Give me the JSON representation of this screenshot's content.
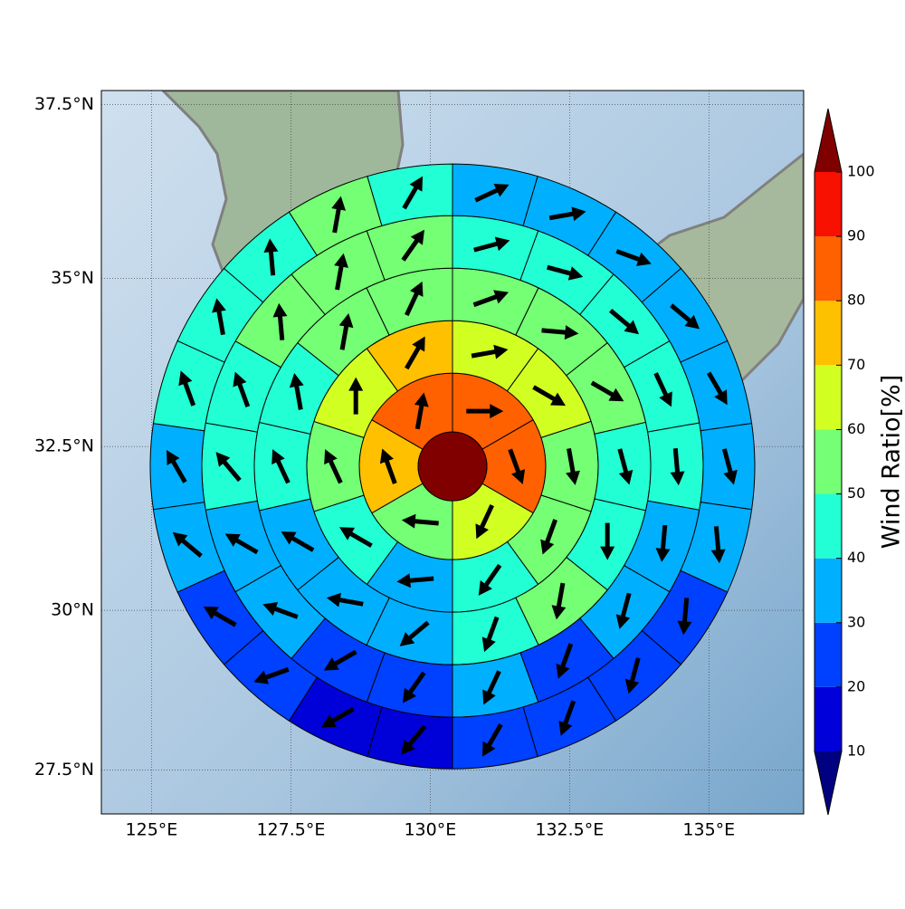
{
  "chart_data": {
    "type": "polar-wind-map",
    "projection": "mercator",
    "xlim": [
      124.1,
      136.7
    ],
    "ylim": [
      26.8,
      37.7
    ],
    "xticks": [
      {
        "value": 125,
        "label": "125°E"
      },
      {
        "value": 127.5,
        "label": "127.5°E"
      },
      {
        "value": 130,
        "label": "130°E"
      },
      {
        "value": 132.5,
        "label": "132.5°E"
      },
      {
        "value": 135,
        "label": "135°E"
      }
    ],
    "yticks": [
      {
        "value": 27.5,
        "label": "27.5°N"
      },
      {
        "value": 30,
        "label": "30°N"
      },
      {
        "value": 32.5,
        "label": "32.5°N"
      },
      {
        "value": 35,
        "label": "35°N"
      },
      {
        "value": 37.5,
        "label": "37.5°N"
      }
    ],
    "grid": true,
    "center_lon": 130.4,
    "center_lat": 32.2,
    "center_value": 105,
    "rings": [
      {
        "values": [
          85,
          82,
          65,
          55,
          75,
          85
        ],
        "directions": [
          90,
          160,
          205,
          275,
          340,
          10
        ]
      },
      {
        "values": [
          65,
          65,
          55,
          55,
          45,
          35,
          45,
          55,
          65,
          75
        ],
        "directions": [
          80,
          120,
          170,
          200,
          215,
          265,
          300,
          335,
          0,
          30
        ]
      },
      {
        "values": [
          55,
          55,
          55,
          45,
          45,
          55,
          45,
          35,
          35,
          35,
          45,
          45,
          55,
          55
        ],
        "directions": [
          70,
          95,
          120,
          165,
          180,
          190,
          200,
          230,
          280,
          300,
          335,
          350,
          10,
          25
        ]
      },
      {
        "values": [
          45,
          45,
          45,
          45,
          45,
          35,
          35,
          25,
          35,
          25,
          25,
          35,
          35,
          45,
          45,
          55,
          55,
          55
        ],
        "directions": [
          75,
          105,
          130,
          155,
          175,
          185,
          195,
          200,
          205,
          215,
          240,
          290,
          300,
          320,
          340,
          355,
          10,
          35
        ]
      },
      {
        "values": [
          35,
          35,
          35,
          35,
          35,
          35,
          35,
          25,
          25,
          25,
          25,
          15,
          15,
          25,
          25,
          35,
          35,
          45,
          45,
          45,
          55,
          45
        ],
        "directions": [
          65,
          80,
          110,
          130,
          150,
          165,
          175,
          185,
          195,
          200,
          210,
          220,
          240,
          250,
          300,
          310,
          330,
          340,
          350,
          355,
          10,
          30
        ]
      }
    ],
    "colorbar": {
      "label": "Wind Ratio[%]",
      "levels": [
        10,
        20,
        30,
        40,
        50,
        60,
        70,
        80,
        90,
        100
      ],
      "colors": [
        "#0000d8",
        "#0040ff",
        "#00b0ff",
        "#22ffd4",
        "#74ff74",
        "#d2ff22",
        "#ffc000",
        "#ff6000",
        "#f81000"
      ],
      "under_color": "#000080",
      "over_color": "#800000"
    }
  }
}
